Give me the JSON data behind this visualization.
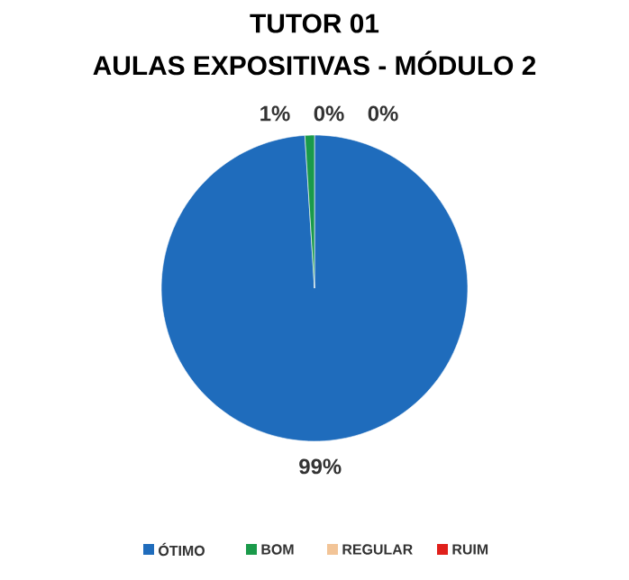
{
  "chart_data": {
    "type": "pie",
    "title": "TUTOR 01",
    "subtitle": "AULAS EXPOSITIVAS - MÓDULO 2",
    "categories": [
      "ÓTIMO",
      "BOM",
      "REGULAR",
      "RUIM"
    ],
    "values": [
      99,
      1,
      0,
      0
    ],
    "value_labels": [
      "99%",
      "1%",
      "0%",
      "0%"
    ],
    "colors": [
      "#1f6cbc",
      "#1a9a4a",
      "#f2c497",
      "#e0201b"
    ],
    "legend": "bottom"
  }
}
